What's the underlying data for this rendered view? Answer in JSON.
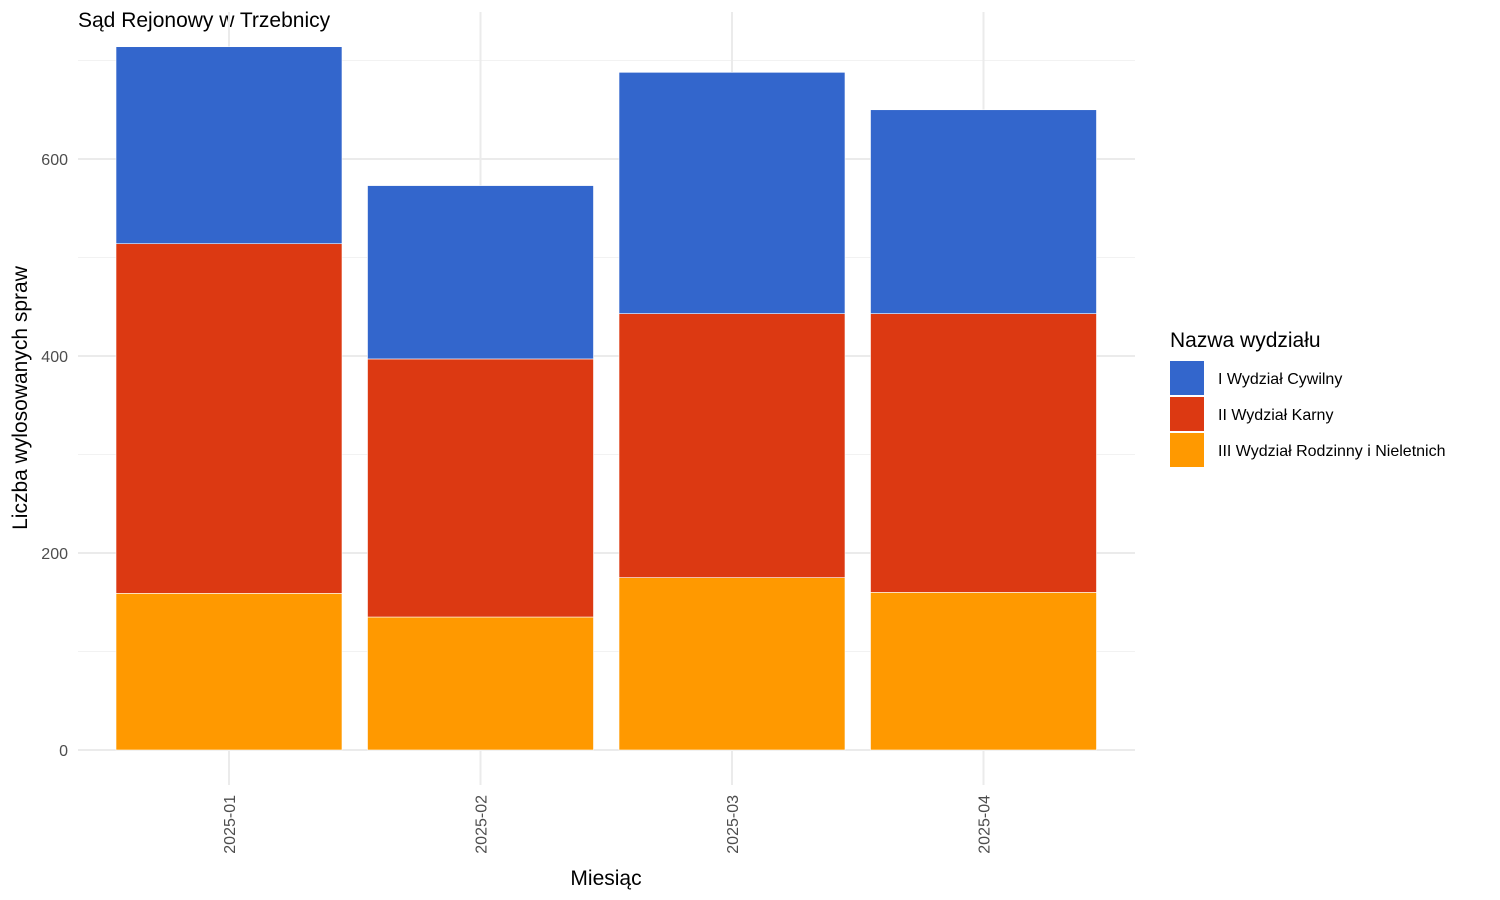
{
  "chart_data": {
    "type": "bar",
    "stacked": true,
    "title": "Sąd Rejonowy w Trzebnicy",
    "xlabel": "Miesiąc",
    "ylabel": "Liczba wylosowanych spraw",
    "categories": [
      "2025-01",
      "2025-02",
      "2025-03",
      "2025-04"
    ],
    "ylim": [
      0,
      740
    ],
    "yticks": [
      0,
      200,
      400,
      600
    ],
    "grid": true,
    "legend_title": "Nazwa wydziału",
    "legend_position": "right",
    "series": [
      {
        "name": "III Wydział Rodzinny i Nieletnich",
        "color": "#FF9900",
        "values": [
          159,
          135,
          175,
          160
        ]
      },
      {
        "name": "II Wydział Karny",
        "color": "#DC3912",
        "values": [
          355,
          262,
          268,
          283
        ]
      },
      {
        "name": "I Wydział Cywilny",
        "color": "#3366CC",
        "values": [
          200,
          176,
          245,
          207
        ]
      }
    ],
    "legend_order": [
      "I Wydział Cywilny",
      "II Wydział Karny",
      "III Wydział Rodzinny i Nieletnich"
    ]
  }
}
